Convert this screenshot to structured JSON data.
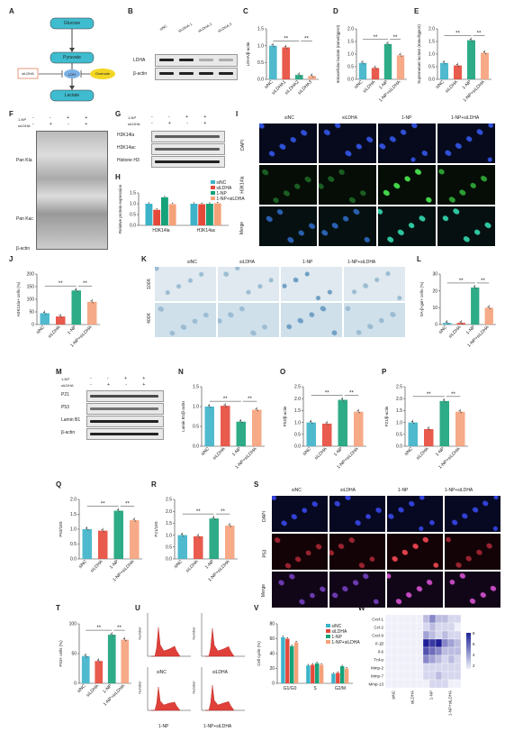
{
  "colors": {
    "siNC": "#3cb3c9",
    "siLDHA": "#e5493a",
    "np": "#17a27a",
    "npsi": "#f5a17a",
    "green": "#2a9d8f"
  },
  "panels": [
    "A",
    "B",
    "C",
    "D",
    "E",
    "F",
    "G",
    "H",
    "I",
    "J",
    "K",
    "L",
    "M",
    "N",
    "O",
    "P",
    "Q",
    "R",
    "S",
    "T",
    "U",
    "V",
    "W"
  ],
  "panelA": {
    "glucose": "Glucose",
    "pyruvate": "Pyruvate",
    "ldh": "LDH",
    "lactate": "Lactate",
    "siLDHA": "siLDHA",
    "oxamate": "Oxamate"
  },
  "panelB": {
    "lanes": [
      "siNC",
      "siLDHA-1",
      "siLDHA-2",
      "siLDHA-3"
    ],
    "rows": [
      "LDHA",
      "β-actin"
    ]
  },
  "groups4": [
    "siNC",
    "siLDHA",
    "1-NP",
    "1-NP+siLDHA"
  ],
  "groups4b": [
    "siNC",
    "siLDHA1",
    "siLDHA2",
    "siLDHA3"
  ],
  "sig": {
    "two": "**",
    "one": "*"
  },
  "chart_data": [
    {
      "type": "bar",
      "panel": "C",
      "ylabel": "LDHA/β-actin",
      "ylim": [
        0,
        1.5
      ],
      "yticks": [
        "0.0",
        "0.5",
        "1.0",
        "1.5"
      ],
      "categories": [
        "siNC",
        "siLDHA1",
        "siLDHA2",
        "siLDHA3"
      ],
      "values": [
        1.0,
        0.95,
        0.13,
        0.1
      ]
    },
    {
      "type": "bar",
      "panel": "D",
      "ylabel": "Intracellular lactate (mmol/gprot)",
      "ylim": [
        0,
        2
      ],
      "yticks": [
        "0.0",
        "0.5",
        "1.0",
        "1.5",
        "2.0"
      ],
      "categories": [
        "siNC",
        "siLDHA",
        "1-NP",
        "1-NP+siLDHA"
      ],
      "values": [
        0.65,
        0.45,
        1.4,
        0.95
      ]
    },
    {
      "type": "bar",
      "panel": "E",
      "ylabel": "Supernatant lactate (mmol/gprot)",
      "ylim": [
        0,
        2
      ],
      "yticks": [
        "0.0",
        "0.5",
        "1.0",
        "1.5",
        "2.0"
      ],
      "categories": [
        "siNC",
        "siLDHA",
        "1-NP",
        "1-NP+siLDHA"
      ],
      "values": [
        0.65,
        0.55,
        1.55,
        1.05
      ]
    },
    {
      "type": "bar",
      "panel": "H",
      "ylabel": "Relative protein expression",
      "ylim": [
        0,
        1.5
      ],
      "yticks": [
        "0.0",
        "0.5",
        "1.0",
        "1.5"
      ],
      "categories": [
        "H3K14la",
        "H3K14ac"
      ],
      "series": [
        {
          "name": "siNC",
          "values": [
            1.0,
            1.0
          ]
        },
        {
          "name": "siLDHA",
          "values": [
            0.72,
            0.98
          ]
        },
        {
          "name": "1-NP",
          "values": [
            1.3,
            1.0
          ]
        },
        {
          "name": "1-NP+siLDHA",
          "values": [
            0.98,
            1.02
          ]
        }
      ]
    },
    {
      "type": "bar",
      "panel": "J",
      "ylabel": "H3K14la+ cells (%)",
      "ylim": [
        0,
        200
      ],
      "yticks": [
        "0",
        "50",
        "100",
        "150",
        "200"
      ],
      "categories": [
        "siNC",
        "siLDHA",
        "1-NP",
        "1-NP+siLDHA"
      ],
      "values": [
        45,
        32,
        135,
        90
      ]
    },
    {
      "type": "bar",
      "panel": "L",
      "ylabel": "SA-β-gal+ cells (%)",
      "ylim": [
        0,
        30
      ],
      "yticks": [
        "0",
        "10",
        "20",
        "30"
      ],
      "categories": [
        "siNC",
        "siLDHA",
        "1-NP",
        "1-NP+siLDHA"
      ],
      "values": [
        1,
        1,
        22,
        10
      ]
    },
    {
      "type": "bar",
      "panel": "N",
      "ylabel": "Lamin B1/β-actin",
      "ylim": [
        0,
        1.5
      ],
      "yticks": [
        "0.0",
        "0.5",
        "1.0",
        "1.5"
      ],
      "categories": [
        "siNC",
        "siLDHA",
        "1-NP",
        "1-NP+siLDHA"
      ],
      "values": [
        1.0,
        1.02,
        0.62,
        0.92
      ]
    },
    {
      "type": "bar",
      "panel": "O",
      "ylabel": "P53/β-actin",
      "ylim": [
        0,
        2.5
      ],
      "yticks": [
        "0.0",
        "0.5",
        "1.0",
        "1.5",
        "2.0",
        "2.5"
      ],
      "categories": [
        "siNC",
        "siLDHA",
        "1-NP",
        "1-NP+siLDHA"
      ],
      "values": [
        1.0,
        0.95,
        1.95,
        1.45
      ]
    },
    {
      "type": "bar",
      "panel": "P",
      "ylabel": "P21/β-actin",
      "ylim": [
        0,
        2.5
      ],
      "yticks": [
        "0.0",
        "0.5",
        "1.0",
        "1.5",
        "2.0",
        "2.5"
      ],
      "categories": [
        "siNC",
        "siLDHA",
        "1-NP",
        "1-NP+siLDHA"
      ],
      "values": [
        1.0,
        0.72,
        1.9,
        1.45
      ]
    },
    {
      "type": "bar",
      "panel": "Q",
      "ylabel": "P53/18S",
      "ylim": [
        0,
        2
      ],
      "yticks": [
        "0.0",
        "0.5",
        "1.0",
        "1.5",
        "2.0"
      ],
      "categories": [
        "siNC",
        "siLDHA",
        "1-NP",
        "1-NP+siLDHA"
      ],
      "values": [
        1.0,
        0.95,
        1.62,
        1.3
      ]
    },
    {
      "type": "bar",
      "panel": "R",
      "ylabel": "P21/18S",
      "ylim": [
        0,
        2.5
      ],
      "yticks": [
        "0.0",
        "0.5",
        "1.0",
        "1.5",
        "2.0",
        "2.5"
      ],
      "categories": [
        "siNC",
        "siLDHA",
        "1-NP",
        "1-NP+siLDHA"
      ],
      "values": [
        1.0,
        0.95,
        1.7,
        1.4
      ]
    },
    {
      "type": "bar",
      "panel": "T",
      "ylabel": "P53+ cells (%)",
      "ylim": [
        0,
        120
      ],
      "yticks": [
        "0",
        "50",
        "100"
      ],
      "categories": [
        "siNC",
        "siLDHA",
        "1-NP",
        "1-NP+siLDHA"
      ],
      "values": [
        55,
        45,
        98,
        88
      ]
    },
    {
      "type": "bar",
      "panel": "V",
      "ylabel": "Cell cycle (%)",
      "ylim": [
        0,
        80
      ],
      "yticks": [
        "0",
        "20",
        "40",
        "60",
        "80"
      ],
      "categories": [
        "G1/G0",
        "S",
        "G2/M"
      ],
      "series": [
        {
          "name": "siNC",
          "values": [
            62,
            24,
            13
          ]
        },
        {
          "name": "siLDHA",
          "values": [
            60,
            25,
            14
          ]
        },
        {
          "name": "1-NP",
          "values": [
            50,
            27,
            23
          ]
        },
        {
          "name": "1-NP+siLDHA",
          "values": [
            55,
            25,
            20
          ]
        }
      ]
    },
    {
      "type": "heatmap",
      "panel": "W",
      "rows": [
        "Cxcl-1",
        "Ccl-2",
        "Cxcl-9",
        "Il-1β",
        "Il-6",
        "Tnf-α",
        "Mmp-2",
        "Mmp-7",
        "Mmp-13"
      ],
      "columns": [
        "siNC",
        "siLDHA",
        "1-NP",
        "1-NP+siLDHA"
      ],
      "scale_ticks": [
        "2",
        "4",
        "6",
        "8"
      ],
      "values": [
        [
          1,
          1,
          1,
          1,
          1,
          1,
          3,
          5,
          3,
          3,
          2,
          2
        ],
        [
          1,
          1,
          1,
          1,
          1,
          1,
          2,
          3,
          2,
          2,
          2,
          1
        ],
        [
          1,
          1,
          1,
          1,
          1,
          1,
          4,
          3,
          2,
          3,
          2,
          2
        ],
        [
          1,
          1,
          1,
          1,
          1,
          1,
          9,
          8,
          9,
          5,
          4,
          3
        ],
        [
          1,
          1,
          1,
          1,
          1,
          1,
          7,
          6,
          5,
          3,
          3,
          3
        ],
        [
          1,
          1,
          1,
          1,
          1,
          1,
          5,
          4,
          3,
          2,
          3,
          2
        ],
        [
          1,
          1,
          1,
          1,
          1,
          1,
          2,
          2,
          2,
          2,
          2,
          2
        ],
        [
          1,
          1,
          1,
          1,
          1,
          1,
          2,
          2,
          3,
          2,
          2,
          2
        ],
        [
          1,
          1,
          1,
          1,
          1,
          1,
          1,
          2,
          2,
          2,
          1,
          1
        ]
      ]
    }
  ],
  "legend": [
    "siNC",
    "siLDHA",
    "1-NP",
    "1-NP+siLDHA"
  ],
  "panelF": {
    "rows": [
      "1-NP",
      "siLDHA"
    ],
    "signs": [
      "-",
      "-",
      "+",
      "+",
      "-",
      "+",
      "-",
      "+"
    ],
    "labels": [
      "Pan Kla",
      "Pan Kac",
      "β-actin"
    ]
  },
  "panelG": {
    "rows": [
      "1-NP",
      "siLDHA"
    ],
    "labels": [
      "H3K14la",
      "H3K14ac",
      "Histone H3"
    ]
  },
  "panelI": {
    "cols": [
      "siNC",
      "siLDHA",
      "1-NP",
      "1-NP+siLDHA"
    ],
    "rows": [
      "DAPI",
      "H3K14la",
      "Merge"
    ]
  },
  "panelK": {
    "cols": [
      "siNC",
      "siLDHA",
      "1-NP",
      "1-NP+siLDHA"
    ],
    "rows": [
      "100X",
      "400X"
    ]
  },
  "panelM": {
    "rows": [
      "1-NP",
      "siLDHA"
    ],
    "labels": [
      "P21",
      "P53",
      "Lamin B1",
      "β-actin"
    ]
  },
  "panelS": {
    "cols": [
      "siNC",
      "siLDHA",
      "1-NP",
      "1-NP+siLDHA"
    ],
    "rows": [
      "DAPI",
      "P53",
      "Merge"
    ]
  },
  "panelU": {
    "labels": [
      "siNC",
      "siLDHA",
      "1-NP",
      "1-NP+siLDHA"
    ],
    "ylabel": "Number"
  }
}
